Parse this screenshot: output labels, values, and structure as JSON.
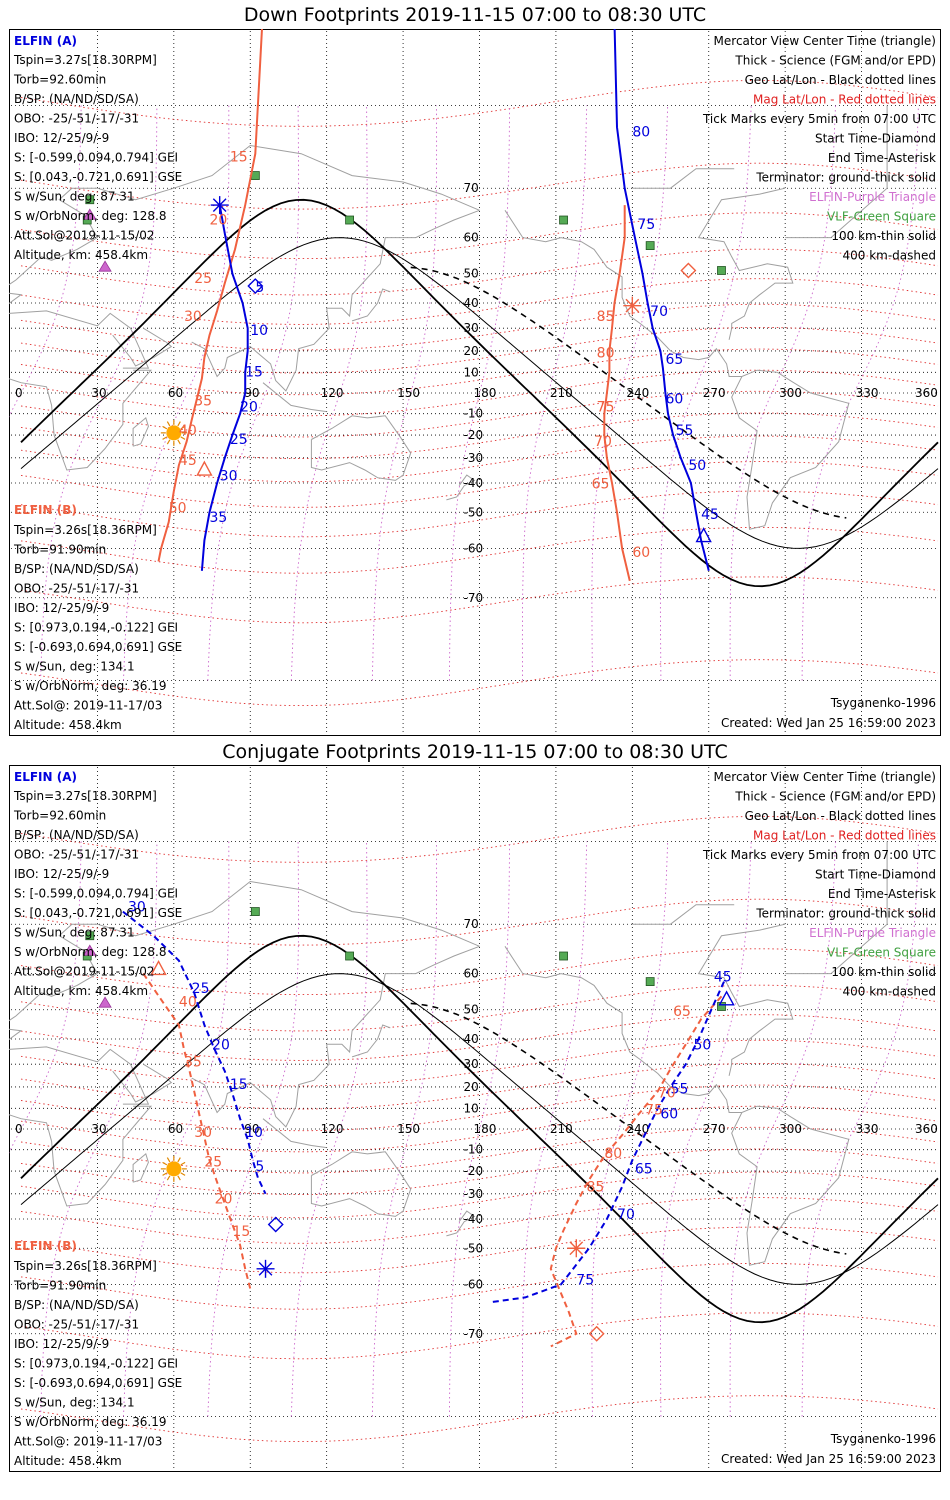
{
  "panels": [
    {
      "title": "Down Footprints 2019-11-15 07:00 to 08:30 UTC",
      "elfin_a": {
        "header": "ELFIN (A)",
        "lines": [
          "Tspin=3.27s[18.30RPM]",
          "Torb=92.60min",
          "B/SP: (NA/ND/SD/SA)",
          "OBO: -25/-51/-17/-31",
          "IBO: 12/-25/9/-9",
          "S: [-0.599,0.094,0.794] GEI",
          "S: [0.043,-0.721,0.691] GSE",
          "S w/Sun, deg: 87.31",
          "S w/OrbNorm, deg: 128.8",
          "Att.Sol@2019-11-15/02",
          "Altitude, km: 458.4km"
        ]
      },
      "elfin_b": {
        "header": "ELFIN (B)",
        "lines": [
          "Tspin=3.26s[18.36RPM]",
          "Torb=91.90min",
          "B/SP: (NA/ND/SD/SA)",
          "OBO: -25/-51/-17/-31",
          "IBO: 12/-25/9/-9",
          "S: [0.973,0.194,-0.122] GEI",
          "S: [-0.693,0.694,0.691] GSE",
          "S w/Sun, deg: 134.1",
          "S w/OrbNorm, deg: 36.19",
          "Att.Sol@: 2019-11-17/03",
          "Altitude: 458.4km"
        ]
      },
      "model": "Tsyganenko-1996",
      "created": "Created: Wed Jan 25 16:59:00 2023",
      "track_a_labels": [
        {
          "text": "5",
          "lon": 92,
          "lat": 44
        },
        {
          "text": "10",
          "lon": 90,
          "lat": 27
        },
        {
          "text": "15",
          "lon": 88,
          "lat": 8
        },
        {
          "text": "20",
          "lon": 86,
          "lat": -9
        },
        {
          "text": "25",
          "lon": 82,
          "lat": -24
        },
        {
          "text": "30",
          "lon": 78,
          "lat": -39
        },
        {
          "text": "35",
          "lon": 74,
          "lat": -53
        },
        {
          "text": "80",
          "lon": 240,
          "lat": 77
        },
        {
          "text": "75",
          "lon": 242,
          "lat": 62
        },
        {
          "text": "70",
          "lon": 247,
          "lat": 35
        },
        {
          "text": "65",
          "lon": 253,
          "lat": 14
        },
        {
          "text": "60",
          "lon": 253,
          "lat": -5
        },
        {
          "text": "55",
          "lon": 257,
          "lat": -20
        },
        {
          "text": "50",
          "lon": 262,
          "lat": -35
        },
        {
          "text": "45",
          "lon": 267,
          "lat": -52
        }
      ],
      "track_b_labels": [
        {
          "text": "15",
          "lon": 82,
          "lat": 74
        },
        {
          "text": "20",
          "lon": 74,
          "lat": 63
        },
        {
          "text": "25",
          "lon": 68,
          "lat": 47
        },
        {
          "text": "30",
          "lon": 64,
          "lat": 33
        },
        {
          "text": "35",
          "lon": 68,
          "lat": -6
        },
        {
          "text": "40",
          "lon": 62,
          "lat": -20
        },
        {
          "text": "45",
          "lon": 62,
          "lat": -33
        },
        {
          "text": "50",
          "lon": 58,
          "lat": -50
        },
        {
          "text": "85",
          "lon": 226,
          "lat": 33
        },
        {
          "text": "80",
          "lon": 226,
          "lat": 17
        },
        {
          "text": "75",
          "lon": 226,
          "lat": -9
        },
        {
          "text": "70",
          "lon": 225,
          "lat": -25
        },
        {
          "text": "65",
          "lon": 224,
          "lat": -42
        },
        {
          "text": "60",
          "lon": 240,
          "lat": -62
        }
      ]
    },
    {
      "title": "Conjugate Footprints 2019-11-15 07:00 to 08:30 UTC",
      "elfin_a": {
        "header": "ELFIN (A)",
        "lines": [
          "Tspin=3.27s[18.30RPM]",
          "Torb=92.60min",
          "B/SP: (NA/ND/SD/SA)",
          "OBO: -25/-51/-17/-31",
          "IBO: 12/-25/9/-9",
          "S: [-0.599,0.094,0.794] GEI",
          "S: [0.043,-0.721,0.691] GSE",
          "S w/Sun, deg: 87.31",
          "S w/OrbNorm, deg: 128.8",
          "Att.Sol@2019-11-15/02",
          "Altitude, km: 458.4km"
        ]
      },
      "elfin_b": {
        "header": "ELFIN (B)",
        "lines": [
          "Tspin=3.26s[18.36RPM]",
          "Torb=91.90min",
          "B/SP: (NA/ND/SD/SA)",
          "OBO: -25/-51/-17/-31",
          "IBO: 12/-25/9/-9",
          "S: [0.973,0.194,-0.122] GEI",
          "S: [-0.693,0.694,0.691] GSE",
          "S w/Sun, deg: 134.1",
          "S w/OrbNorm, deg: 36.19",
          "Att.Sol@: 2019-11-17/03",
          "Altitude: 458.4km"
        ]
      },
      "model": "Tsyganenko-1996",
      "created": "Created: Wed Jan 25 16:59:00 2023",
      "track_a_labels": [
        {
          "text": "30",
          "lon": 42,
          "lat": 72
        },
        {
          "text": "25",
          "lon": 67,
          "lat": 55
        },
        {
          "text": "20",
          "lon": 75,
          "lat": 36
        },
        {
          "text": "15",
          "lon": 82,
          "lat": 19
        },
        {
          "text": "10",
          "lon": 88,
          "lat": -4
        },
        {
          "text": "5",
          "lon": 92,
          "lat": -20
        },
        {
          "text": "50",
          "lon": 264,
          "lat": 36
        },
        {
          "text": "55",
          "lon": 255,
          "lat": 17
        },
        {
          "text": "60",
          "lon": 251,
          "lat": 5
        },
        {
          "text": "65",
          "lon": 241,
          "lat": -21
        },
        {
          "text": "70",
          "lon": 234,
          "lat": -40
        },
        {
          "text": "75",
          "lon": 218,
          "lat": -60
        },
        {
          "text": "45",
          "lon": 272,
          "lat": 58
        }
      ],
      "track_b_labels": [
        {
          "text": "40",
          "lon": 62,
          "lat": 51
        },
        {
          "text": "35",
          "lon": 64,
          "lat": 29
        },
        {
          "text": "30",
          "lon": 68,
          "lat": -4
        },
        {
          "text": "25",
          "lon": 72,
          "lat": -18
        },
        {
          "text": "20",
          "lon": 76,
          "lat": -34
        },
        {
          "text": "15",
          "lon": 83,
          "lat": -46
        },
        {
          "text": "65",
          "lon": 256,
          "lat": 48
        },
        {
          "text": "70",
          "lon": 250,
          "lat": 15
        },
        {
          "text": "75",
          "lon": 245,
          "lat": 7
        },
        {
          "text": "80",
          "lon": 229,
          "lat": -14
        },
        {
          "text": "85",
          "lon": 222,
          "lat": -29
        }
      ]
    }
  ],
  "legend_lines": [
    {
      "text": "Mercator View Center Time (triangle)",
      "color": "#000000"
    },
    {
      "text": "Thick - Science (FGM and/or EPD)",
      "color": "#000000"
    },
    {
      "text": "Geo Lat/Lon - Black dotted lines",
      "color": "#000000"
    },
    {
      "text": "Mag Lat/Lon - Red dotted lines",
      "color": "#e02020"
    },
    {
      "text": "Tick Marks every 5min from 07:00 UTC",
      "color": "#000000"
    },
    {
      "text": "Start Time-Diamond",
      "color": "#000000"
    },
    {
      "text": "End Time-Asterisk",
      "color": "#000000"
    },
    {
      "text": "Terminator: ground-thick solid",
      "color": "#000000"
    },
    {
      "text": "ELFIN-Purple Triangle",
      "color": "#d070d0"
    },
    {
      "text": "VLF-Green Square",
      "color": "#40a040"
    },
    {
      "text": "100 km-thin solid",
      "color": "#000000"
    },
    {
      "text": "400 km-dashed",
      "color": "#000000"
    }
  ],
  "lon_ticks": [
    "0",
    "30",
    "60",
    "90",
    "120",
    "150",
    "180",
    "210",
    "240",
    "270",
    "300",
    "330",
    "360"
  ],
  "lat_ticks": [
    {
      "text": "70",
      "lat": 70
    },
    {
      "text": "60",
      "lat": 60
    },
    {
      "text": "50",
      "lat": 50
    },
    {
      "text": "40",
      "lat": 40
    },
    {
      "text": "30",
      "lat": 30
    },
    {
      "text": "20",
      "lat": 20
    },
    {
      "text": "10",
      "lat": 10
    },
    {
      "text": "-10",
      "lat": -10
    },
    {
      "text": "-20",
      "lat": -20
    },
    {
      "text": "-30",
      "lat": -30
    },
    {
      "text": "-40",
      "lat": -40
    },
    {
      "text": "-50",
      "lat": -50
    },
    {
      "text": "-60",
      "lat": -60
    },
    {
      "text": "-70",
      "lat": -70
    }
  ],
  "colors": {
    "elfin_a": "#0000dd",
    "elfin_b": "#f06040",
    "mag_grid": "#e03030",
    "geo_grid": "#000000",
    "elfin_marker": "#cc66cc",
    "vlf_station": "#55aa55",
    "sun": "#ffaa00",
    "coast": "#a0a0a0"
  },
  "vlf_stations": [
    {
      "lon": 27,
      "lat": 68
    },
    {
      "lon": 26,
      "lat": 64
    },
    {
      "lon": 92,
      "lat": 72
    },
    {
      "lon": 129,
      "lat": 64
    },
    {
      "lon": 213,
      "lat": 64
    },
    {
      "lon": 247,
      "lat": 58
    },
    {
      "lon": 275,
      "lat": 51
    }
  ],
  "elfin_markers": [
    {
      "lon": 27,
      "lat": 65
    },
    {
      "lon": 33,
      "lat": 52
    }
  ],
  "sun_position": {
    "lon": 60,
    "lat": -19
  }
}
